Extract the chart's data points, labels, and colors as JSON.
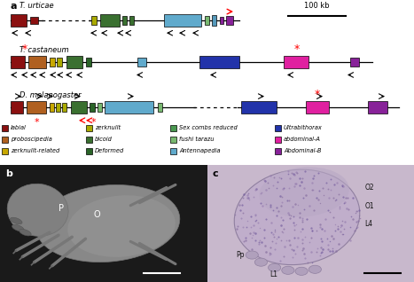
{
  "panel_a_label": "a",
  "panel_b_label": "b",
  "panel_c_label": "c",
  "scale_bar_text": "100 kb",
  "species": [
    "T. urticae",
    "T. castaneum",
    "D. melanogaster"
  ],
  "bg_color": "#FFFFFF",
  "C_labial": "#8B1010",
  "C_proboscipedia": "#B06020",
  "C_zerknullt_rel": "#C8A800",
  "C_zerknullt": "#AAAA00",
  "C_bicoid": "#3A7030",
  "C_deformed": "#2A6428",
  "C_scr": "#4A9850",
  "C_ftz": "#78B870",
  "C_antp": "#60AACC",
  "C_ubx": "#2233AA",
  "C_abdA": "#E020A0",
  "C_abdB": "#882299",
  "legend": [
    [
      "labial",
      "#8B1010"
    ],
    [
      "proboscipedia",
      "#B06020"
    ],
    [
      "zerknullt-related",
      "#C8A800"
    ],
    [
      "zerknullt",
      "#AAAA00"
    ],
    [
      "bicoid",
      "#3A7030"
    ],
    [
      "Deformed",
      "#2A6428"
    ],
    [
      "Sex combs reduced",
      "#4A9850"
    ],
    [
      "fushi tarazu",
      "#78B870"
    ],
    [
      "Antennapedia",
      "#60AACC"
    ],
    [
      "Ultrabithorax",
      "#2233AA"
    ],
    [
      "abdominal-A",
      "#E020A0"
    ],
    [
      "Abdominal-B",
      "#882299"
    ]
  ]
}
